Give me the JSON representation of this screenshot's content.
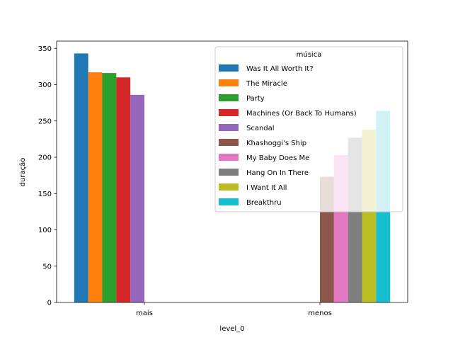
{
  "chart_data": {
    "type": "bar",
    "title": "",
    "xlabel": "level_0",
    "ylabel": "duração",
    "categories": [
      "mais",
      "menos"
    ],
    "ylim": [
      0,
      360
    ],
    "yticks": [
      0,
      50,
      100,
      150,
      200,
      250,
      300,
      350
    ],
    "grid": false,
    "legend": {
      "title": "música",
      "placement": "top-right"
    },
    "series": [
      {
        "name": "Was It All Worth It?",
        "color": "#1f77b4",
        "values": [
          343,
          null
        ]
      },
      {
        "name": "The Miracle",
        "color": "#ff7f0e",
        "values": [
          317,
          null
        ]
      },
      {
        "name": "Party",
        "color": "#2ca02c",
        "values": [
          316,
          null
        ]
      },
      {
        "name": "Machines (Or Back To Humans)",
        "color": "#d62728",
        "values": [
          310,
          null
        ]
      },
      {
        "name": "Scandal",
        "color": "#9467bd",
        "values": [
          286,
          null
        ]
      },
      {
        "name": "Khashoggi's Ship",
        "color": "#8c564b",
        "values": [
          null,
          173
        ]
      },
      {
        "name": "My Baby Does Me",
        "color": "#e377c2",
        "values": [
          null,
          203
        ]
      },
      {
        "name": "Hang On In There",
        "color": "#7f7f7f",
        "values": [
          null,
          227
        ]
      },
      {
        "name": "I Want It All",
        "color": "#bcbd22",
        "values": [
          null,
          238
        ]
      },
      {
        "name": "Breakthru",
        "color": "#17becf",
        "values": [
          null,
          264
        ]
      }
    ]
  }
}
